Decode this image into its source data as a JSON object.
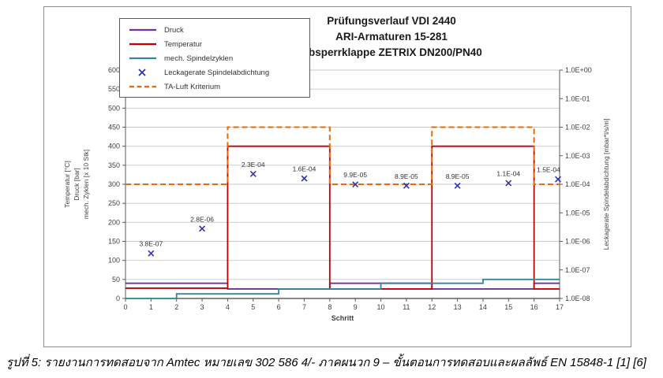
{
  "figure": {
    "caption": "รูปที่ 5: รายงานการทดสอบจาก Amtec หมายเลข 302 586 4/- ภาคผนวก 9 – ขั้นตอนการทดสอบและผลลัพธ์ EN 15848-1 [1] [6]"
  },
  "chart_data": {
    "type": "line",
    "title_lines": [
      "Prüfungsverlauf VDI 2440",
      "ARI-Armaturen 15-281",
      "Absperrklappe ZETRIX DN200/PN40"
    ],
    "legend": [
      {
        "label": "Druck",
        "type": "line",
        "color": "#7030A0"
      },
      {
        "label": "Temperatur",
        "type": "line",
        "color": "#C00000"
      },
      {
        "label": "mech. Spindelzyklen",
        "type": "line",
        "color": "#31859C"
      },
      {
        "label": "Leckagerate Spindelabdichtung",
        "type": "x-marker",
        "color": "#3333AD"
      },
      {
        "label": "TA-Luft Kriterium",
        "type": "dashed",
        "color": "#E46C0A"
      }
    ],
    "x_axis": {
      "label": "Schritt",
      "min": 0,
      "max": 17,
      "ticks": [
        0,
        1,
        2,
        3,
        4,
        5,
        6,
        7,
        8,
        9,
        10,
        11,
        12,
        13,
        14,
        15,
        16,
        17
      ]
    },
    "left_axis": {
      "label_lines": [
        "Temperatur [°C]",
        "Druck [bar]",
        "mech. Zyklen [x 10 Stk]"
      ],
      "min": 0,
      "max": 600,
      "tick_step": 50,
      "grid": true
    },
    "right_axis": {
      "label": "Leckagerate Spindelabdichtung [mbar*l/s/m]",
      "scale": "log10",
      "max": 1,
      "min": 1e-08,
      "tick_labels": [
        "1.0E+00",
        "1.0E-01",
        "1.0E-02",
        "1.0E-03",
        "1.0E-04",
        "1.0E-05",
        "1.0E-06",
        "1.0E-07",
        "1.0E-08"
      ]
    },
    "series": [
      {
        "name": "Druck",
        "axis": "left",
        "color": "#7030A0",
        "dash": false,
        "step_points": [
          [
            0,
            40
          ],
          [
            4,
            40
          ],
          [
            4,
            25
          ],
          [
            8,
            25
          ],
          [
            8,
            40
          ],
          [
            12,
            40
          ],
          [
            12,
            25
          ],
          [
            16,
            25
          ],
          [
            16,
            40
          ],
          [
            17,
            40
          ]
        ]
      },
      {
        "name": "Temperatur",
        "axis": "left",
        "color": "#C00000",
        "dash": false,
        "step_points": [
          [
            0,
            27
          ],
          [
            4,
            27
          ],
          [
            4,
            400
          ],
          [
            8,
            400
          ],
          [
            8,
            25
          ],
          [
            12,
            25
          ],
          [
            12,
            400
          ],
          [
            16,
            400
          ],
          [
            16,
            25
          ],
          [
            17,
            25
          ]
        ]
      },
      {
        "name": "mech. Spindelzyklen",
        "axis": "left",
        "color": "#31859C",
        "dash": false,
        "step_points": [
          [
            0,
            0
          ],
          [
            2,
            0
          ],
          [
            2,
            12
          ],
          [
            6,
            12
          ],
          [
            6,
            25
          ],
          [
            10,
            25
          ],
          [
            10,
            40
          ],
          [
            14,
            40
          ],
          [
            14,
            50
          ],
          [
            17,
            50
          ]
        ]
      },
      {
        "name": "TA-Luft Kriterium",
        "axis": "right",
        "color": "#E46C0A",
        "dash": true,
        "step_points": [
          [
            0,
            0.0001
          ],
          [
            4,
            0.0001
          ],
          [
            4,
            0.01
          ],
          [
            8,
            0.01
          ],
          [
            8,
            0.0001
          ],
          [
            12,
            0.0001
          ],
          [
            12,
            0.01
          ],
          [
            16,
            0.01
          ],
          [
            16,
            0.0001
          ],
          [
            17,
            0.0001
          ]
        ]
      }
    ],
    "leakage_points": {
      "name": "Leckagerate Spindelabdichtung",
      "color": "#3333AD",
      "points": [
        {
          "x": 1,
          "value": 3.8e-07,
          "label": "3.8E-07"
        },
        {
          "x": 3,
          "value": 2.8e-06,
          "label": "2.8E-06"
        },
        {
          "x": 5,
          "value": 0.00023,
          "label": "2.3E-04"
        },
        {
          "x": 7,
          "value": 0.00016,
          "label": "1.6E-04"
        },
        {
          "x": 9,
          "value": 9.9e-05,
          "label": "9.9E-05"
        },
        {
          "x": 11,
          "value": 8.9e-05,
          "label": "8.9E-05"
        },
        {
          "x": 13,
          "value": 8.9e-05,
          "label": "8.9E-05"
        },
        {
          "x": 15,
          "value": 0.00011,
          "label": "1.1E-04"
        },
        {
          "x": 17,
          "value": 0.00015,
          "label": "1.5E-04"
        }
      ]
    }
  }
}
